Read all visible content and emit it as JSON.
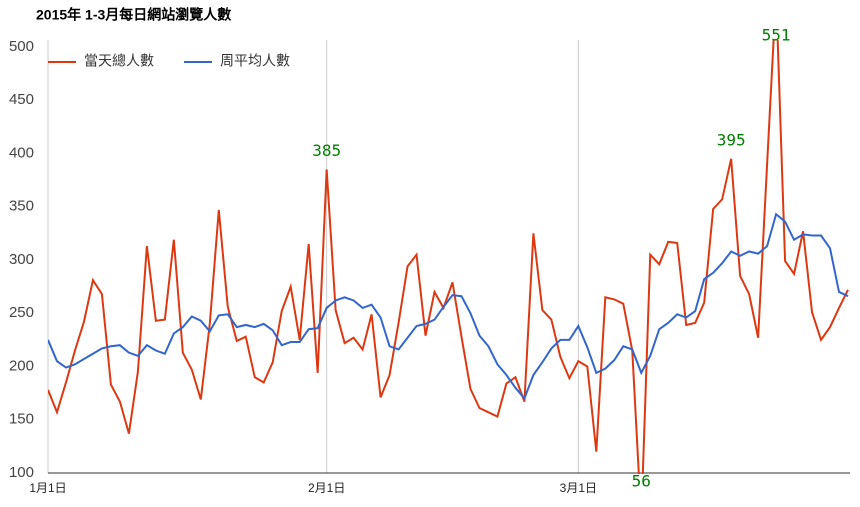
{
  "chart_data": {
    "type": "line",
    "title": "2015年 1-3月每日網站瀏覽人數",
    "x": [
      1,
      2,
      3,
      4,
      5,
      6,
      7,
      8,
      9,
      10,
      11,
      12,
      13,
      14,
      15,
      16,
      17,
      18,
      19,
      20,
      21,
      22,
      23,
      24,
      25,
      26,
      27,
      28,
      29,
      30,
      31,
      32,
      33,
      34,
      35,
      36,
      37,
      38,
      39,
      40,
      41,
      42,
      43,
      44,
      45,
      46,
      47,
      48,
      49,
      50,
      51,
      52,
      53,
      54,
      55,
      56,
      57,
      58,
      59,
      60,
      61,
      62,
      63,
      64,
      65,
      66,
      67,
      68,
      69,
      70,
      71,
      72,
      73,
      74,
      75,
      76,
      77,
      78,
      79,
      80,
      81,
      82,
      83,
      84,
      85,
      86,
      87,
      88,
      89,
      90
    ],
    "xlim": [
      1,
      90
    ],
    "xticks": [
      {
        "value": 1,
        "label": "1月1日"
      },
      {
        "value": 32,
        "label": "2月1日"
      },
      {
        "value": 60,
        "label": "3月1日"
      }
    ],
    "ylim": [
      100,
      500
    ],
    "yticks": [
      100,
      150,
      200,
      250,
      300,
      350,
      400,
      450,
      500
    ],
    "grid": true,
    "legend": "top-left",
    "series": [
      {
        "name": "當天總人數",
        "color": "#dc3912",
        "values": [
          178,
          157,
          185,
          215,
          242,
          281,
          268,
          183,
          167,
          137,
          195,
          313,
          243,
          244,
          319,
          213,
          197,
          169,
          240,
          347,
          256,
          224,
          228,
          190,
          185,
          204,
          252,
          275,
          225,
          315,
          194,
          385,
          253,
          222,
          227,
          216,
          249,
          171,
          192,
          241,
          294,
          305,
          229,
          270,
          255,
          279,
          228,
          179,
          161,
          157,
          153,
          184,
          190,
          167,
          325,
          253,
          244,
          209,
          189,
          205,
          200,
          120,
          265,
          263,
          259,
          215,
          56,
          305,
          296,
          317,
          316,
          239,
          241,
          260,
          348,
          357,
          395,
          285,
          268,
          227,
          390,
          551,
          299,
          287,
          327,
          251,
          225,
          237,
          255,
          272
        ],
        "value_labels": [
          null,
          null,
          null,
          null,
          null,
          null,
          null,
          null,
          null,
          null,
          null,
          null,
          null,
          null,
          null,
          null,
          null,
          null,
          null,
          null,
          null,
          null,
          null,
          null,
          null,
          null,
          null,
          null,
          null,
          null,
          null,
          "385",
          null,
          null,
          null,
          null,
          null,
          null,
          null,
          null,
          null,
          null,
          null,
          null,
          null,
          null,
          null,
          null,
          null,
          null,
          null,
          null,
          null,
          null,
          null,
          null,
          null,
          null,
          null,
          null,
          null,
          null,
          null,
          null,
          null,
          null,
          "56",
          null,
          null,
          null,
          null,
          null,
          null,
          null,
          null,
          null,
          "395",
          null,
          null,
          null,
          null,
          "551",
          null,
          null,
          null,
          null,
          null,
          null,
          null,
          null
        ]
      },
      {
        "name": "周平均人數",
        "color": "#3366cc",
        "values": [
          225,
          205,
          199,
          202,
          207,
          212,
          217,
          219,
          220,
          213,
          210,
          220,
          215,
          212,
          231,
          237,
          247,
          243,
          233,
          248,
          249,
          237,
          239,
          237,
          240,
          234,
          220,
          223,
          223,
          235,
          236,
          255,
          262,
          265,
          262,
          255,
          258,
          246,
          219,
          216,
          227,
          238,
          240,
          244,
          256,
          267,
          266,
          250,
          229,
          219,
          202,
          192,
          180,
          170,
          192,
          204,
          217,
          225,
          225,
          238,
          218,
          194,
          198,
          206,
          219,
          216,
          194,
          210,
          235,
          241,
          249,
          246,
          252,
          282,
          288,
          297,
          308,
          304,
          308,
          306,
          313,
          343,
          336,
          319,
          324,
          323,
          323,
          311,
          270,
          266
        ]
      }
    ]
  }
}
